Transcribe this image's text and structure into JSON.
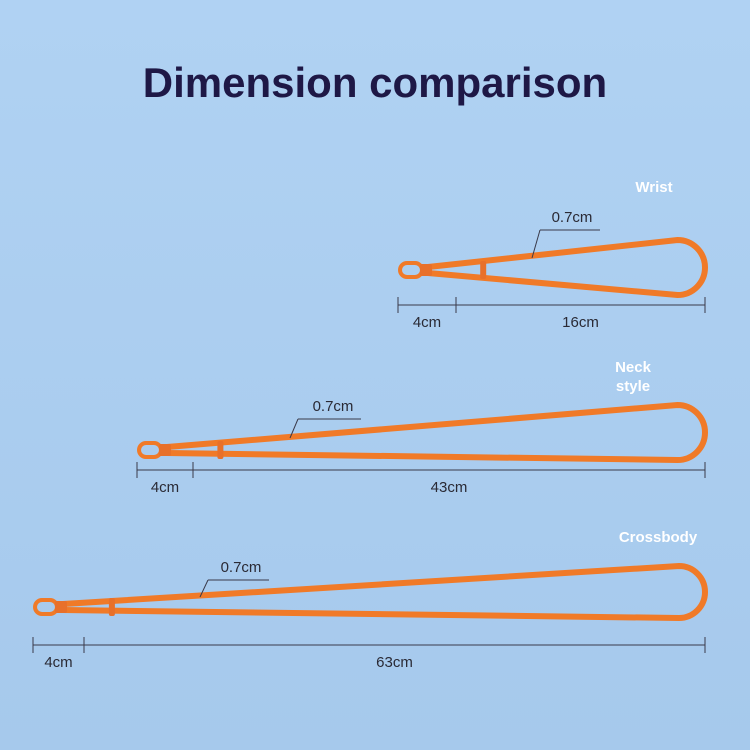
{
  "title": "Dimension comparison",
  "straps": [
    {
      "label_lines": [
        "Wrist"
      ],
      "thickness": "0.7cm",
      "end_length": "4cm",
      "loop_length": "16cm"
    },
    {
      "label_lines": [
        "Neck",
        "style"
      ],
      "thickness": "0.7cm",
      "end_length": "4cm",
      "loop_length": "43cm"
    },
    {
      "label_lines": [
        "Crossbody"
      ],
      "thickness": "0.7cm",
      "end_length": "4cm",
      "loop_length": "63cm"
    }
  ]
}
